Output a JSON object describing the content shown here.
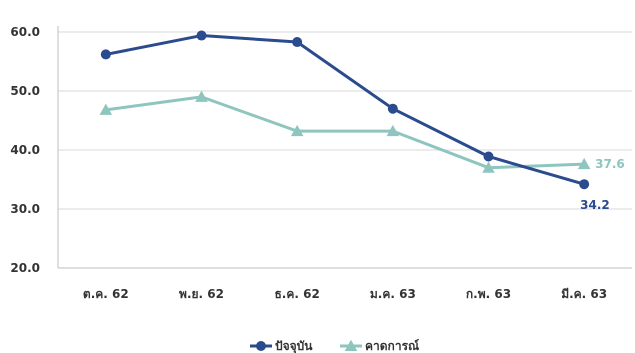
{
  "chart_data": {
    "type": "line",
    "categories": [
      "ต.ค. 62",
      "พ.ย. 62",
      "ธ.ค. 62",
      "ม.ค. 63",
      "ก.พ. 63",
      "มี.ค. 63"
    ],
    "ylim": [
      20,
      60
    ],
    "yticks": [
      "20.0",
      "30.0",
      "40.0",
      "50.0",
      "60.0"
    ],
    "grid": "horizontal",
    "legend_position": "bottom-center",
    "series": [
      {
        "name": "ปัจจุบัน",
        "color": "#2a4b8d",
        "marker": "circle",
        "values": [
          56.2,
          59.4,
          58.3,
          47.0,
          38.9,
          34.2
        ],
        "last_label": "34.2"
      },
      {
        "name": "คาดการณ์",
        "color": "#8ec5bf",
        "marker": "triangle",
        "values": [
          46.8,
          49.0,
          43.2,
          43.2,
          37.0,
          37.6
        ],
        "last_label": "37.6"
      }
    ]
  }
}
